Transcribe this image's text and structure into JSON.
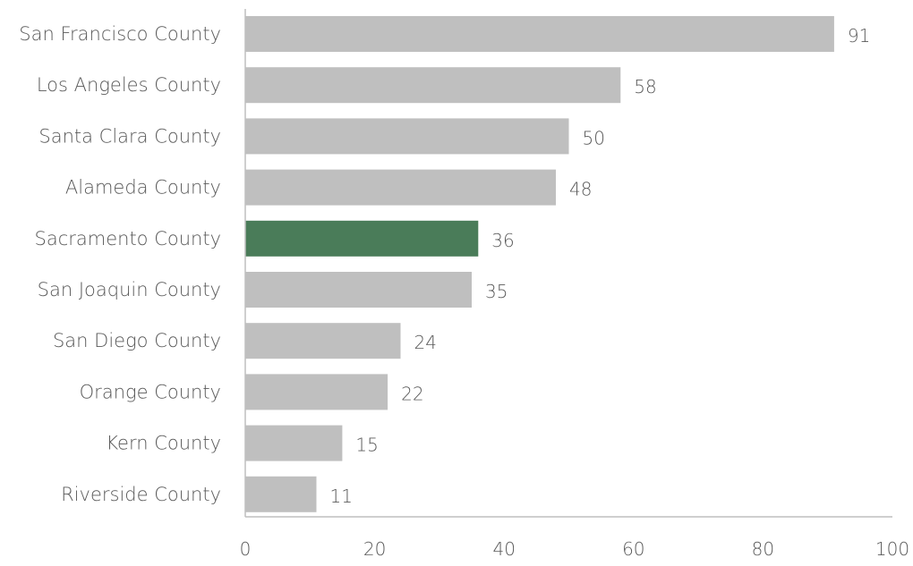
{
  "chart_data": {
    "type": "bar",
    "orientation": "horizontal",
    "title": "",
    "xlabel": "",
    "ylabel": "",
    "xlim": [
      0,
      100
    ],
    "x_ticks": [
      "0",
      "20",
      "40",
      "60",
      "80",
      "100"
    ],
    "grid": false,
    "legend": "none",
    "categories": [
      "San Francisco County",
      "Los Angeles County",
      "Santa Clara County",
      "Alameda County",
      "Sacramento County",
      "San Joaquin County",
      "San Diego County",
      "Orange County",
      "Kern County",
      "Riverside County"
    ],
    "values": [
      91,
      58,
      50,
      48,
      36,
      35,
      24,
      22,
      15,
      11
    ],
    "data_labels": [
      "91",
      "58",
      "50",
      "48",
      "36",
      "35",
      "24",
      "22",
      "15",
      "11"
    ],
    "highlight_category": "Sacramento County",
    "colors": {
      "default_bar": "#bfbfbf",
      "highlight_bar": "#4a7c59",
      "axis": "#bfbfbf",
      "text": "#595959"
    }
  }
}
